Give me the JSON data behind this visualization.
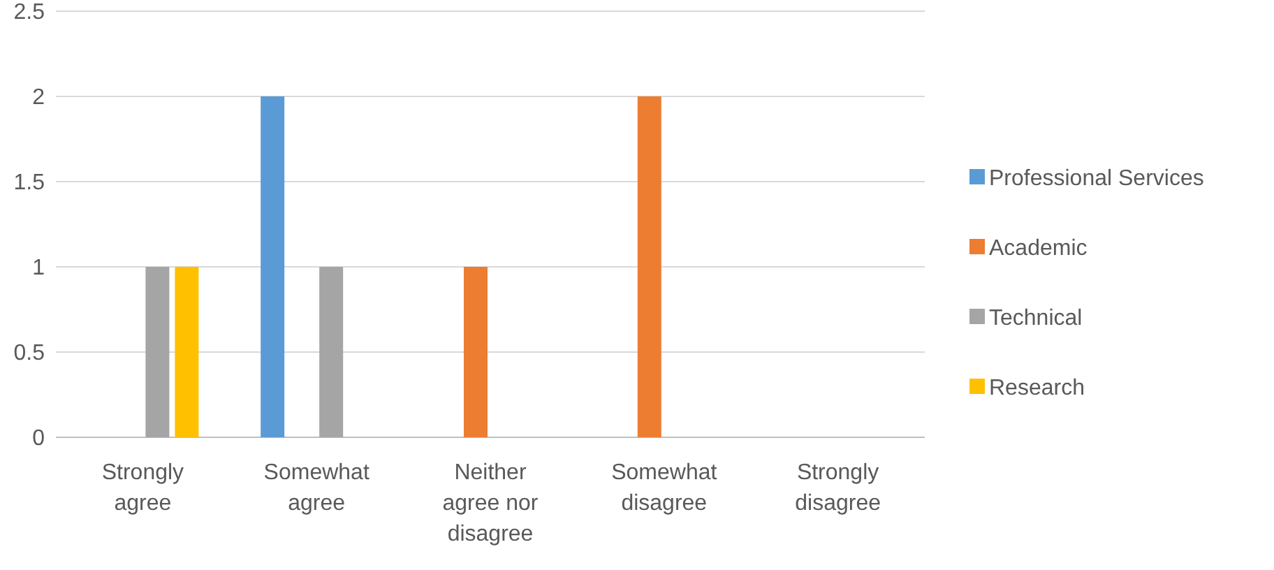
{
  "chart_data": {
    "type": "bar",
    "categories": [
      "Strongly agree",
      "Somewhat agree",
      "Neither agree nor disagree",
      "Somewhat disagree",
      "Strongly disagree"
    ],
    "series": [
      {
        "name": "Professional Services",
        "color": "#5b9bd5",
        "values": [
          0,
          2,
          0,
          0,
          0
        ]
      },
      {
        "name": "Academic",
        "color": "#ed7d31",
        "values": [
          0,
          0,
          1,
          2,
          0
        ]
      },
      {
        "name": "Technical",
        "color": "#a5a5a5",
        "values": [
          1,
          1,
          0,
          0,
          0
        ]
      },
      {
        "name": "Research",
        "color": "#ffc000",
        "values": [
          1,
          0,
          0,
          0,
          0
        ]
      }
    ],
    "ylim": [
      0,
      2.5
    ],
    "yticks": [
      0,
      0.5,
      1,
      1.5,
      2,
      2.5
    ],
    "grid": "y",
    "legend": "right"
  }
}
